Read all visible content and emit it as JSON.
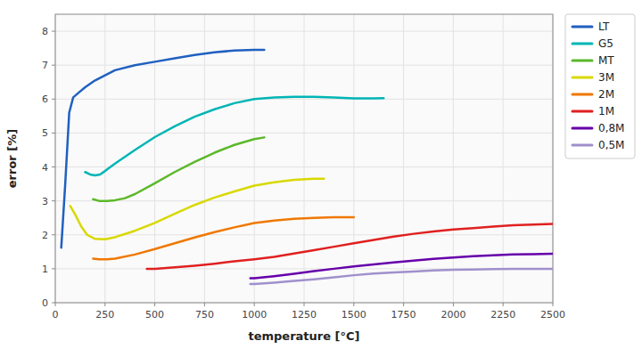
{
  "chart_data": {
    "type": "line",
    "xlabel": "temperature [°C]",
    "ylabel": "error [%]",
    "xlim": [
      0,
      2500
    ],
    "ylim": [
      0,
      8.5
    ],
    "xticks": [
      0,
      250,
      500,
      750,
      1000,
      1250,
      1500,
      1750,
      2000,
      2250,
      2500
    ],
    "yticks": [
      0,
      1,
      2,
      3,
      4,
      5,
      6,
      7,
      8
    ],
    "grid": true,
    "legend": "upper right",
    "series": [
      {
        "name": "LT",
        "color": "#2060c0",
        "x": [
          30,
          50,
          70,
          90,
          120,
          150,
          200,
          300,
          400,
          500,
          600,
          700,
          800,
          900,
          1000,
          1050
        ],
        "values": [
          1.62,
          3.5,
          5.6,
          6.05,
          6.2,
          6.35,
          6.55,
          6.85,
          7.0,
          7.1,
          7.2,
          7.3,
          7.38,
          7.43,
          7.45,
          7.45
        ]
      },
      {
        "name": "G5",
        "color": "#00b5b5",
        "x": [
          150,
          175,
          200,
          225,
          250,
          300,
          400,
          500,
          600,
          700,
          800,
          900,
          1000,
          1100,
          1200,
          1300,
          1400,
          1500,
          1600,
          1650
        ],
        "values": [
          3.85,
          3.78,
          3.75,
          3.78,
          3.88,
          4.1,
          4.5,
          4.88,
          5.2,
          5.48,
          5.7,
          5.88,
          6.0,
          6.05,
          6.07,
          6.07,
          6.05,
          6.02,
          6.02,
          6.03
        ]
      },
      {
        "name": "MT",
        "color": "#5cb82a",
        "x": [
          190,
          220,
          260,
          300,
          350,
          400,
          500,
          600,
          700,
          800,
          900,
          1000,
          1050
        ],
        "values": [
          3.05,
          3.0,
          3.0,
          3.02,
          3.08,
          3.2,
          3.52,
          3.85,
          4.15,
          4.42,
          4.65,
          4.82,
          4.87
        ]
      },
      {
        "name": "3M",
        "color": "#d8d800",
        "x": [
          75,
          100,
          130,
          160,
          200,
          250,
          300,
          400,
          500,
          600,
          700,
          800,
          900,
          1000,
          1100,
          1200,
          1300,
          1350
        ],
        "values": [
          2.85,
          2.6,
          2.25,
          2.0,
          1.88,
          1.87,
          1.93,
          2.12,
          2.35,
          2.62,
          2.88,
          3.1,
          3.28,
          3.45,
          3.55,
          3.62,
          3.65,
          3.65
        ]
      },
      {
        "name": "2M",
        "color": "#f07800",
        "x": [
          190,
          220,
          260,
          300,
          400,
          500,
          600,
          700,
          800,
          900,
          1000,
          1100,
          1200,
          1300,
          1400,
          1500
        ],
        "values": [
          1.3,
          1.28,
          1.28,
          1.3,
          1.42,
          1.58,
          1.75,
          1.92,
          2.08,
          2.22,
          2.35,
          2.42,
          2.47,
          2.5,
          2.52,
          2.52
        ]
      },
      {
        "name": "1M",
        "color": "#e02020",
        "x": [
          460,
          500,
          600,
          700,
          800,
          900,
          1000,
          1100,
          1200,
          1300,
          1400,
          1500,
          1600,
          1700,
          1800,
          1900,
          2000,
          2100,
          2200,
          2300,
          2400,
          2500
        ],
        "values": [
          1.0,
          1.0,
          1.04,
          1.09,
          1.15,
          1.22,
          1.28,
          1.35,
          1.45,
          1.55,
          1.65,
          1.75,
          1.85,
          1.95,
          2.03,
          2.1,
          2.16,
          2.2,
          2.24,
          2.28,
          2.3,
          2.32
        ]
      },
      {
        "name": "0,8M",
        "color": "#6600aa",
        "x": [
          980,
          1000,
          1100,
          1200,
          1300,
          1400,
          1500,
          1600,
          1700,
          1800,
          1900,
          2000,
          2100,
          2200,
          2300,
          2400,
          2500
        ],
        "values": [
          0.72,
          0.72,
          0.78,
          0.85,
          0.93,
          1.0,
          1.07,
          1.13,
          1.19,
          1.24,
          1.29,
          1.33,
          1.37,
          1.4,
          1.42,
          1.43,
          1.44
        ]
      },
      {
        "name": "0,5M",
        "color": "#a090cc",
        "x": [
          980,
          1000,
          1100,
          1200,
          1300,
          1400,
          1500,
          1600,
          1700,
          1800,
          1900,
          2000,
          2100,
          2200,
          2300,
          2400,
          2500
        ],
        "values": [
          0.55,
          0.55,
          0.59,
          0.64,
          0.69,
          0.75,
          0.81,
          0.86,
          0.89,
          0.92,
          0.95,
          0.97,
          0.98,
          0.99,
          1.0,
          1.0,
          1.0
        ]
      }
    ]
  }
}
